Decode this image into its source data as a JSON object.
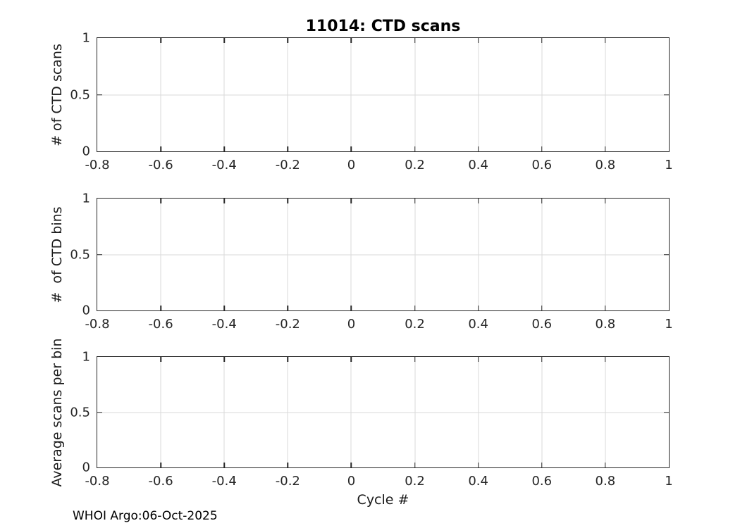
{
  "figure": {
    "title": "11014: CTD scans",
    "xlabel": "Cycle #",
    "footer": "WHOI Argo:06-Oct-2025",
    "colors": {
      "background": "#ffffff",
      "axis": "#262626",
      "grid": "#dadada",
      "title_text": "#000000",
      "label_text": "#1a1a1a"
    }
  },
  "chart_data": [
    {
      "type": "line",
      "subplot": "top",
      "title": "11014: CTD scans",
      "ylabel": "# of CTD scans",
      "xlabel": "",
      "xlim": [
        -0.8,
        1
      ],
      "ylim": [
        0,
        1
      ],
      "x_ticks": [
        -0.8,
        -0.6,
        -0.4,
        -0.2,
        0,
        0.2,
        0.4,
        0.6,
        0.8,
        1
      ],
      "x_tick_labels": [
        "-0.8",
        "-0.6",
        "-0.4",
        "-0.2",
        "0",
        "0.2",
        "0.4",
        "0.6",
        "0.8",
        "1"
      ],
      "y_ticks": [
        0,
        0.5,
        1
      ],
      "y_tick_labels": [
        "0",
        "0.5",
        "1"
      ],
      "grid": true,
      "box": true,
      "series": []
    },
    {
      "type": "line",
      "subplot": "middle",
      "title": "",
      "ylabel": "#  of CTD bins",
      "xlabel": "",
      "xlim": [
        -0.8,
        1
      ],
      "ylim": [
        0,
        1
      ],
      "x_ticks": [
        -0.8,
        -0.6,
        -0.4,
        -0.2,
        0,
        0.2,
        0.4,
        0.6,
        0.8,
        1
      ],
      "x_tick_labels": [
        "-0.8",
        "-0.6",
        "-0.4",
        "-0.2",
        "0",
        "0.2",
        "0.4",
        "0.6",
        "0.8",
        "1"
      ],
      "y_ticks": [
        0,
        0.5,
        1
      ],
      "y_tick_labels": [
        "0",
        "0.5",
        "1"
      ],
      "grid": true,
      "box": true,
      "series": []
    },
    {
      "type": "line",
      "subplot": "bottom",
      "title": "",
      "ylabel": "Average scans per bin",
      "xlabel": "Cycle #",
      "xlim": [
        -0.8,
        1
      ],
      "ylim": [
        0,
        1
      ],
      "x_ticks": [
        -0.8,
        -0.6,
        -0.4,
        -0.2,
        0,
        0.2,
        0.4,
        0.6,
        0.8,
        1
      ],
      "x_tick_labels": [
        "-0.8",
        "-0.6",
        "-0.4",
        "-0.2",
        "0",
        "0.2",
        "0.4",
        "0.6",
        "0.8",
        "1"
      ],
      "y_ticks": [
        0,
        0.5,
        1
      ],
      "y_tick_labels": [
        "0",
        "0.5",
        "1"
      ],
      "grid": true,
      "box": true,
      "series": []
    }
  ]
}
